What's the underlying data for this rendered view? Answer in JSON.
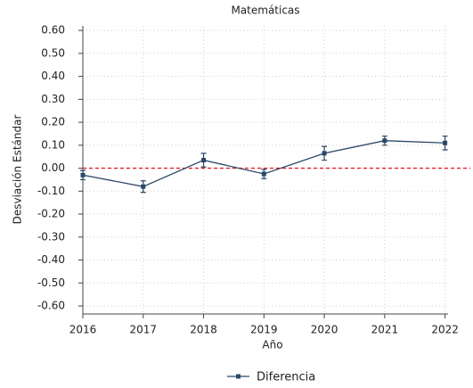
{
  "chart_data": {
    "type": "line",
    "title": "Matemáticas",
    "x_label": "Año",
    "y_label": "Desviación Estándar",
    "x": [
      2016,
      2017,
      2018,
      2019,
      2020,
      2021,
      2022
    ],
    "series": [
      {
        "name": "Diferencia",
        "color": "#2b4766",
        "values": [
          -0.03,
          -0.08,
          0.035,
          -0.025,
          0.065,
          0.12,
          0.11
        ],
        "errors": [
          0.02,
          0.025,
          0.03,
          0.02,
          0.03,
          0.02,
          0.03
        ]
      }
    ],
    "xlim": [
      2016,
      2022.05
    ],
    "xticks": [
      2016,
      2017,
      2018,
      2019,
      2020,
      2021,
      2022
    ],
    "ylim": [
      -0.635,
      0.62
    ],
    "yticks": [
      {
        "value": 0.6,
        "label": "0.60"
      },
      {
        "value": 0.5,
        "label": "0.50"
      },
      {
        "value": 0.4,
        "label": "0.40"
      },
      {
        "value": 0.3,
        "label": "0.30"
      },
      {
        "value": 0.2,
        "label": "0.20"
      },
      {
        "value": 0.1,
        "label": "0.10"
      },
      {
        "value": 0,
        "label": "0.00"
      },
      {
        "value": -0.1,
        "label": "-0.10"
      },
      {
        "value": -0.2,
        "label": "-0.20"
      },
      {
        "value": -0.3,
        "label": "-0.30"
      },
      {
        "value": -0.4,
        "label": "-0.40"
      },
      {
        "value": -0.5,
        "label": "-0.50"
      },
      {
        "value": -0.6,
        "label": "-0.60"
      }
    ],
    "grid": true,
    "reference_line": {
      "value": 0,
      "color": "#e8202a"
    },
    "legend": "bottom"
  }
}
